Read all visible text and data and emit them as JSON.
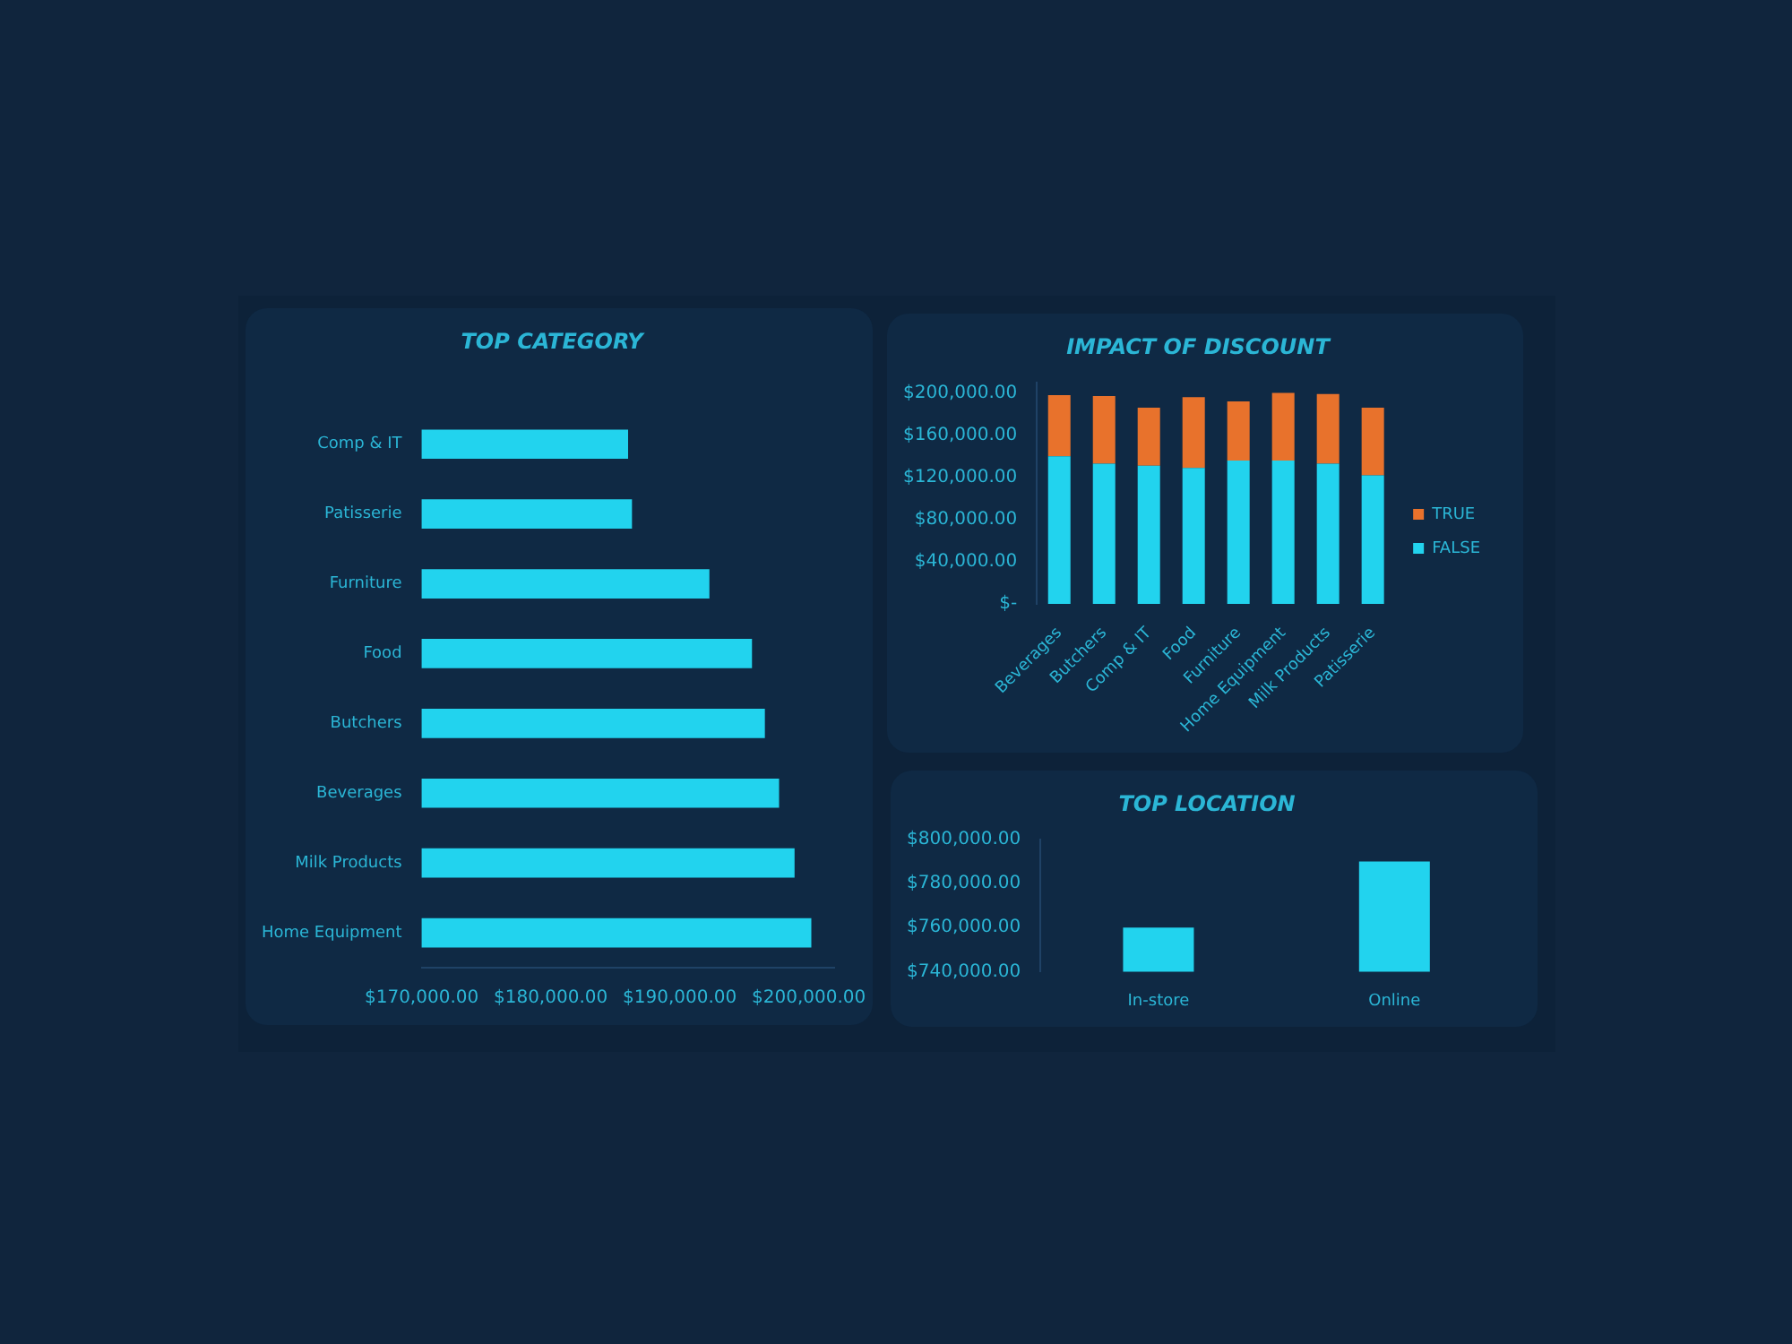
{
  "chart_data": [
    {
      "type": "bar",
      "title": "TOP CATEGORY",
      "orientation": "horizontal",
      "categories": [
        "Comp & IT",
        "Patisserie",
        "Furniture",
        "Food",
        "Butchers",
        "Beverages",
        "Milk Products",
        "Home Equipment"
      ],
      "values": [
        186000,
        186300,
        192300,
        195600,
        196600,
        197700,
        198900,
        200200
      ],
      "color": "#22d3ee",
      "xlim": [
        170000,
        202000
      ],
      "xticks": [
        {
          "value": 170000,
          "label": "$170,000.00"
        },
        {
          "value": 180000,
          "label": "$180,000.00"
        },
        {
          "value": 190000,
          "label": "$190,000.00"
        },
        {
          "value": 200000,
          "label": "$200,000.00"
        }
      ],
      "grid": false,
      "legend": false
    },
    {
      "type": "bar",
      "title": "IMPACT OF DISCOUNT",
      "stacked": true,
      "categories": [
        "Beverages",
        "Butchers",
        "Comp & IT",
        "Food",
        "Furniture",
        "Home Equipment",
        "Milk Products",
        "Patisserie"
      ],
      "series": [
        {
          "name": "FALSE",
          "color": "#22d3ee",
          "values": [
            140000,
            133000,
            131000,
            129000,
            136000,
            136000,
            133000,
            122000
          ]
        },
        {
          "name": "TRUE",
          "color": "#e8722c",
          "values": [
            58000,
            64000,
            55000,
            67000,
            56000,
            64000,
            66000,
            64000
          ]
        }
      ],
      "ylim": [
        0,
        210000
      ],
      "yticks": [
        {
          "value": 0,
          "label": "$-"
        },
        {
          "value": 40000,
          "label": "$40,000.00"
        },
        {
          "value": 80000,
          "label": "$80,000.00"
        },
        {
          "value": 120000,
          "label": "$120,000.00"
        },
        {
          "value": 160000,
          "label": "$160,000.00"
        },
        {
          "value": 200000,
          "label": "$200,000.00"
        }
      ],
      "grid": false,
      "legend": "right"
    },
    {
      "type": "bar",
      "title": "TOP LOCATION",
      "categories": [
        "In-store",
        "Online"
      ],
      "values": [
        760000,
        790000
      ],
      "color": "#22d3ee",
      "ylim": [
        740000,
        800000
      ],
      "yticks": [
        {
          "value": 740000,
          "label": "$740,000.00"
        },
        {
          "value": 760000,
          "label": "$760,000.00"
        },
        {
          "value": 780000,
          "label": "$780,000.00"
        },
        {
          "value": 800000,
          "label": "$800,000.00"
        }
      ],
      "grid": false,
      "legend": false
    }
  ]
}
